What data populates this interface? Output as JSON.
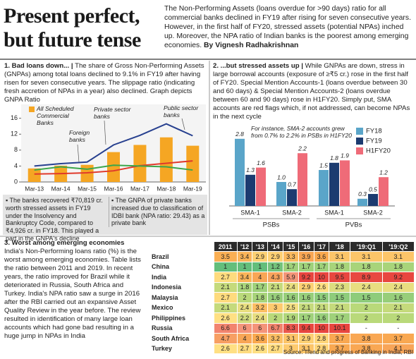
{
  "header": {
    "title_lines": [
      "Present perfect,",
      "but future tense"
    ],
    "intro": "The Non-Performing Assets (loans overdue for >90 days) ratio for all commercial banks declined in FY19 after rising for seven consecutive years. However, in the first half of FY20, stressed assets (potential NPAs) inched up. Moreover, the NPA ratio of Indian banks is the poorest among emerging economies.",
    "byline": "By Vignesh Radhakrishnan"
  },
  "sections": [
    {
      "heading": "1. Bad loans down... |",
      "text": "The share of Gross Non-Performing Assets (GNPAs) among total loans declined to 9.1% in FY19 after having risen for seven consecutive years. The slippage ratio (indicating fresh accretion of NPAs in a year) also declined. Graph depicts GNPA Ratio"
    },
    {
      "heading": "2. ...but stressed assets up |",
      "text": "While GNPAs are down, stress in large borrowal accounts (exposure of ≥₹5 cr.) rose in the first half of FY20. Special Mention Accounts-1 (loans overdue between 30 and 60 days) & Special Mention Accounts-2 (loans overdue between 60 and 90 days) rose in H1FY20. Simply put, SMA accounts are red flags which, if not addressed, can become NPAs in the next cycle"
    },
    {
      "heading": "3. Worst among emerging economies",
      "text": "India's Non-Performing loans ratio (%) is the worst among emerging economies. Table lists the ratio between 2011 and 2019. In recent years, the ratio improved for Brazil while it deteriorated in Russia, South Africa and Turkey. India's NPA ratio saw a surge in 2016 after the RBI carried out an expansive Asset Quality Review in the year before. The review resulted in identification of many large loan accounts which had gone bad resulting in a huge jump in NPAs in India"
    }
  ],
  "chart_data": [
    {
      "type": "combo",
      "categories": [
        "Mar-13",
        "Mar-14",
        "Mar-15",
        "Mar-16",
        "Mar-17",
        "Mar-18",
        "Mar-19"
      ],
      "series": [
        {
          "name": "All Scheduled Commercial Banks",
          "type": "bar",
          "color": "#f5a623",
          "values": [
            3.4,
            4.1,
            4.3,
            7.5,
            9.3,
            11.2,
            9.1
          ]
        },
        {
          "name": "Public sector banks",
          "type": "line",
          "color": "#27408f",
          "values": [
            4.0,
            4.6,
            5.0,
            9.3,
            11.7,
            14.6,
            11.6
          ]
        },
        {
          "name": "Private sector banks",
          "type": "line",
          "color": "#e0392b",
          "values": [
            2.0,
            2.1,
            2.3,
            2.8,
            4.1,
            4.7,
            5.3
          ]
        },
        {
          "name": "Foreign banks",
          "type": "line",
          "color": "#3ba64a",
          "values": [
            3.0,
            3.8,
            3.2,
            4.2,
            4.0,
            3.8,
            3.0
          ]
        }
      ],
      "ylim": [
        0,
        17
      ],
      "yticks": [
        0,
        4,
        8,
        12,
        16
      ]
    },
    {
      "type": "bar",
      "categories": [
        "SMA-1",
        "SMA-2",
        "SMA-1",
        "SMA-2"
      ],
      "groups": [
        "PSBs",
        "PVBs"
      ],
      "series": [
        {
          "name": "FY18",
          "color": "#5aa5c9",
          "values": [
            2.8,
            1.0,
            1.5,
            0.3
          ],
          "value_labels": [
            "2.8",
            "1.0",
            "1.5",
            "0.3"
          ]
        },
        {
          "name": "FY19",
          "color": "#1c3b70",
          "values": [
            1.3,
            0.7,
            1.8,
            0.5
          ]
        },
        {
          "name": "H1FY20",
          "color": "#ef6b78",
          "values": [
            1.6,
            2.2,
            1.9,
            1.2
          ]
        }
      ],
      "annotation": "For instance, SMA-2 accounts grew from 0.7% to 2.2% in PSBs in H1FY20"
    }
  ],
  "notes": [
    "▪ The banks recovered ₹70,819 cr. worth stressed assets in FY19 under the Insolvency and Bankruptcy Code, compared to ₹4,926 cr. in FY18. This played a part in the GNPA's decline",
    "▪ The GNPA of private banks increased due to classification of IDBI bank (NPA ratio: 29.43) as a private bank"
  ],
  "table": {
    "columns": [
      "2011",
      "'12",
      "'13",
      "'14",
      "'15",
      "'16",
      "'17",
      "'18",
      "'19:Q1",
      "'19:Q2"
    ],
    "rows": [
      {
        "label": "Brazil",
        "cells": [
          3.5,
          3.4,
          2.9,
          2.9,
          3.3,
          3.9,
          3.6,
          3.1,
          3.1,
          3.1
        ]
      },
      {
        "label": "China",
        "cells": [
          1,
          1,
          1,
          1.2,
          1.7,
          1.7,
          1.7,
          1.8,
          1.8,
          1.8
        ]
      },
      {
        "label": "India",
        "cells": [
          2.7,
          3.4,
          4,
          4.3,
          5.9,
          9.2,
          10,
          9.5,
          8.9,
          9.2
        ]
      },
      {
        "label": "Indonesia",
        "cells": [
          2.1,
          1.8,
          1.7,
          2.1,
          2.4,
          2.9,
          2.6,
          2.3,
          2.4,
          2.4
        ]
      },
      {
        "label": "Malaysia",
        "cells": [
          2.7,
          2,
          1.8,
          1.6,
          1.6,
          1.6,
          1.5,
          1.5,
          1.5,
          1.6
        ]
      },
      {
        "label": "Mexico",
        "cells": [
          2.1,
          2.4,
          3.2,
          3,
          2.5,
          2.1,
          2.1,
          2.1,
          2,
          2.1
        ]
      },
      {
        "label": "Philippines",
        "cells": [
          2.6,
          2.2,
          2.4,
          2,
          1.9,
          1.7,
          1.6,
          1.7,
          2,
          2
        ]
      },
      {
        "label": "Russia",
        "cells": [
          6.6,
          6,
          6,
          6.7,
          8.3,
          9.4,
          10,
          10.1,
          "-",
          "-"
        ]
      },
      {
        "label": "South Africa",
        "cells": [
          4.7,
          4,
          3.6,
          3.2,
          3.1,
          2.9,
          2.8,
          3.7,
          3.8,
          3.7
        ]
      },
      {
        "label": "Turkey",
        "cells": [
          2.6,
          2.7,
          2.6,
          2.7,
          3,
          3.1,
          2.8,
          3.7,
          3.8,
          4.1
        ]
      }
    ]
  },
  "source": "Source: Trend and progress of banking in India, RBI"
}
